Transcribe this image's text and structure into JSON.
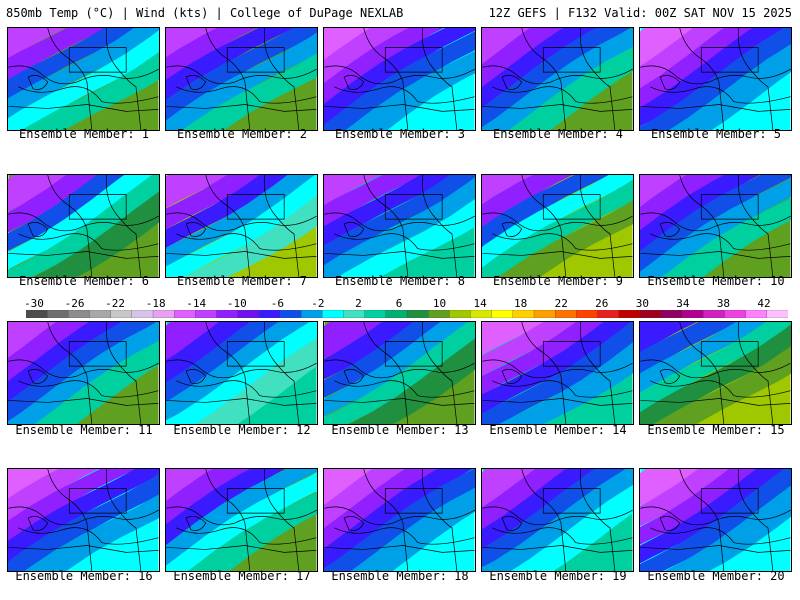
{
  "header": {
    "left": "850mb Temp (°C) | Wind (kts) | College of DuPage NEXLAB",
    "right": "12Z GEFS | F132 Valid: 00Z SAT NOV 15 2025"
  },
  "colorbar": {
    "labels": [
      "-30",
      "-26",
      "-22",
      "-18",
      "-14",
      "-10",
      "-6",
      "-2",
      "2",
      "6",
      "10",
      "14",
      "18",
      "22",
      "26",
      "30",
      "34",
      "38",
      "42"
    ],
    "colors": [
      "#4d4d4d",
      "#6e6e6e",
      "#8c8c8c",
      "#a8a8a8",
      "#c7c7c7",
      "#d8c3e8",
      "#e8a0f0",
      "#e060ff",
      "#c040ff",
      "#9020ff",
      "#7010ee",
      "#3a1aff",
      "#1050e8",
      "#00a0e8",
      "#00ffff",
      "#40e0c0",
      "#00d0a0",
      "#00b070",
      "#209040",
      "#60a020",
      "#a0c800",
      "#d8e800",
      "#ffff00",
      "#ffd000",
      "#ffa000",
      "#ff7000",
      "#ff4000",
      "#e82020",
      "#c00000",
      "#a00020",
      "#900060",
      "#b00090",
      "#d020c0",
      "#f040e0",
      "#ff80ff",
      "#ffc0ff"
    ]
  },
  "members": [
    {
      "label": "Ensemble Member: 1",
      "palette": [
        "#c040ff",
        "#9020ff",
        "#1050e8",
        "#00a0e8",
        "#00ffff",
        "#00d0a0",
        "#60a020"
      ]
    },
    {
      "label": "Ensemble Member: 2",
      "palette": [
        "#c040ff",
        "#9020ff",
        "#3a1aff",
        "#1050e8",
        "#00a0e8",
        "#00d0a0",
        "#60a020"
      ]
    },
    {
      "label": "Ensemble Member: 3",
      "palette": [
        "#e060ff",
        "#c040ff",
        "#9020ff",
        "#3a1aff",
        "#1050e8",
        "#00a0e8",
        "#00ffff"
      ]
    },
    {
      "label": "Ensemble Member: 4",
      "palette": [
        "#c040ff",
        "#9020ff",
        "#3a1aff",
        "#1050e8",
        "#00a0e8",
        "#00d0a0",
        "#60a020"
      ]
    },
    {
      "label": "Ensemble Member: 5",
      "palette": [
        "#e060ff",
        "#c040ff",
        "#9020ff",
        "#3a1aff",
        "#1050e8",
        "#00a0e8",
        "#00ffff"
      ]
    },
    {
      "label": "Ensemble Member: 6",
      "palette": [
        "#c040ff",
        "#9020ff",
        "#1050e8",
        "#00ffff",
        "#00d0a0",
        "#209040",
        "#60a020"
      ]
    },
    {
      "label": "Ensemble Member: 7",
      "palette": [
        "#c040ff",
        "#9020ff",
        "#3a1aff",
        "#00a0e8",
        "#00ffff",
        "#40e0c0",
        "#a0c800"
      ]
    },
    {
      "label": "Ensemble Member: 8",
      "palette": [
        "#c040ff",
        "#9020ff",
        "#3a1aff",
        "#1050e8",
        "#00a0e8",
        "#00ffff",
        "#00d0a0"
      ]
    },
    {
      "label": "Ensemble Member: 9",
      "palette": [
        "#c040ff",
        "#9020ff",
        "#1050e8",
        "#00ffff",
        "#00d0a0",
        "#60a020",
        "#a0c800"
      ]
    },
    {
      "label": "Ensemble Member: 10",
      "palette": [
        "#c040ff",
        "#9020ff",
        "#3a1aff",
        "#1050e8",
        "#00a0e8",
        "#00d0a0",
        "#60a020"
      ]
    },
    {
      "label": "Ensemble Member: 11",
      "palette": [
        "#c040ff",
        "#9020ff",
        "#3a1aff",
        "#1050e8",
        "#00a0e8",
        "#00d0a0",
        "#60a020"
      ]
    },
    {
      "label": "Ensemble Member: 12",
      "palette": [
        "#9020ff",
        "#3a1aff",
        "#1050e8",
        "#00a0e8",
        "#00ffff",
        "#40e0c0",
        "#00d0a0"
      ]
    },
    {
      "label": "Ensemble Member: 13",
      "palette": [
        "#9020ff",
        "#3a1aff",
        "#1050e8",
        "#00a0e8",
        "#00d0a0",
        "#209040",
        "#60a020"
      ]
    },
    {
      "label": "Ensemble Member: 14",
      "palette": [
        "#e060ff",
        "#c040ff",
        "#9020ff",
        "#3a1aff",
        "#1050e8",
        "#00a0e8",
        "#00d0a0"
      ]
    },
    {
      "label": "Ensemble Member: 15",
      "palette": [
        "#3a1aff",
        "#1050e8",
        "#00a0e8",
        "#00d0a0",
        "#209040",
        "#60a020",
        "#a0c800"
      ]
    },
    {
      "label": "Ensemble Member: 16",
      "palette": [
        "#e060ff",
        "#c040ff",
        "#9020ff",
        "#3a1aff",
        "#1050e8",
        "#00a0e8",
        "#00ffff"
      ]
    },
    {
      "label": "Ensemble Member: 17",
      "palette": [
        "#c040ff",
        "#9020ff",
        "#3a1aff",
        "#00a0e8",
        "#00ffff",
        "#00d0a0",
        "#60a020"
      ]
    },
    {
      "label": "Ensemble Member: 18",
      "palette": [
        "#e060ff",
        "#c040ff",
        "#9020ff",
        "#3a1aff",
        "#1050e8",
        "#00a0e8",
        "#00ffff"
      ]
    },
    {
      "label": "Ensemble Member: 19",
      "palette": [
        "#c040ff",
        "#9020ff",
        "#3a1aff",
        "#1050e8",
        "#00a0e8",
        "#00ffff",
        "#00d0a0"
      ]
    },
    {
      "label": "Ensemble Member: 20",
      "palette": [
        "#e060ff",
        "#c040ff",
        "#9020ff",
        "#3a1aff",
        "#1050e8",
        "#00a0e8",
        "#00ffff"
      ]
    }
  ]
}
